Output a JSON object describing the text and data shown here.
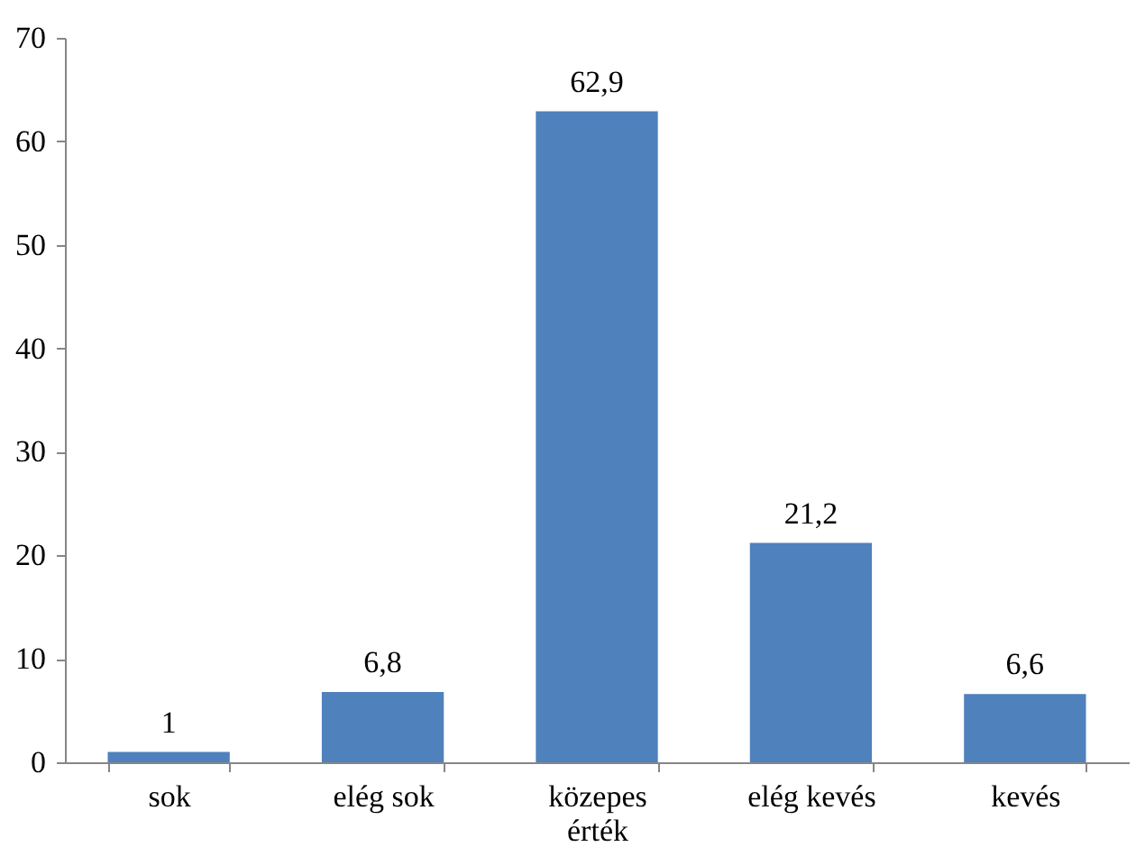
{
  "chart_data": {
    "type": "bar",
    "categories": [
      "sok",
      "elég sok",
      "közepes érték",
      "elég kevés",
      "kevés"
    ],
    "values": [
      1,
      6.8,
      62.9,
      21.2,
      6.6
    ],
    "value_labels": [
      "1",
      "6,8",
      "62,9",
      "21,2",
      "6,6"
    ],
    "color": "#4f81bd",
    "ylim": [
      0,
      70
    ],
    "yticks": [
      0,
      10,
      20,
      30,
      40,
      50,
      60,
      70
    ],
    "grid": false
  }
}
